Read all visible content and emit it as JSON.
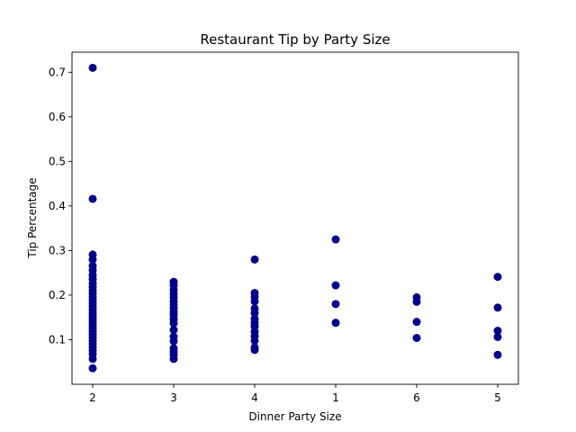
{
  "chart_data": {
    "type": "scatter",
    "title": "Restaurant Tip by Party Size",
    "xlabel": "Dinner Party Size",
    "ylabel": "Tip Percentage",
    "categories": [
      "2",
      "3",
      "4",
      "1",
      "6",
      "5"
    ],
    "y_ticks": [
      0.1,
      0.2,
      0.3,
      0.4,
      0.5,
      0.6,
      0.7
    ],
    "y_tick_labels": [
      "0.1",
      "0.2",
      "0.3",
      "0.4",
      "0.5",
      "0.6",
      "0.7"
    ],
    "ylim": [
      0.0,
      0.745
    ],
    "grid": false,
    "legend": "none",
    "marker_color": "#00008b",
    "points": [
      {
        "x": "2",
        "y": 0.71
      },
      {
        "x": "2",
        "y": 0.416
      },
      {
        "x": "2",
        "y": 0.291
      },
      {
        "x": "2",
        "y": 0.28
      },
      {
        "x": "2",
        "y": 0.266
      },
      {
        "x": "2",
        "y": 0.256
      },
      {
        "x": "2",
        "y": 0.245
      },
      {
        "x": "2",
        "y": 0.236
      },
      {
        "x": "2",
        "y": 0.226
      },
      {
        "x": "2",
        "y": 0.218
      },
      {
        "x": "2",
        "y": 0.21
      },
      {
        "x": "2",
        "y": 0.203
      },
      {
        "x": "2",
        "y": 0.196
      },
      {
        "x": "2",
        "y": 0.189
      },
      {
        "x": "2",
        "y": 0.182
      },
      {
        "x": "2",
        "y": 0.175
      },
      {
        "x": "2",
        "y": 0.168
      },
      {
        "x": "2",
        "y": 0.161
      },
      {
        "x": "2",
        "y": 0.154
      },
      {
        "x": "2",
        "y": 0.147
      },
      {
        "x": "2",
        "y": 0.14
      },
      {
        "x": "2",
        "y": 0.133
      },
      {
        "x": "2",
        "y": 0.126
      },
      {
        "x": "2",
        "y": 0.119
      },
      {
        "x": "2",
        "y": 0.112
      },
      {
        "x": "2",
        "y": 0.105
      },
      {
        "x": "2",
        "y": 0.098
      },
      {
        "x": "2",
        "y": 0.091
      },
      {
        "x": "2",
        "y": 0.084
      },
      {
        "x": "2",
        "y": 0.076
      },
      {
        "x": "2",
        "y": 0.068
      },
      {
        "x": "2",
        "y": 0.057
      },
      {
        "x": "2",
        "y": 0.036
      },
      {
        "x": "3",
        "y": 0.23
      },
      {
        "x": "3",
        "y": 0.222
      },
      {
        "x": "3",
        "y": 0.212
      },
      {
        "x": "3",
        "y": 0.203
      },
      {
        "x": "3",
        "y": 0.195
      },
      {
        "x": "3",
        "y": 0.186
      },
      {
        "x": "3",
        "y": 0.178
      },
      {
        "x": "3",
        "y": 0.17
      },
      {
        "x": "3",
        "y": 0.162
      },
      {
        "x": "3",
        "y": 0.155
      },
      {
        "x": "3",
        "y": 0.146
      },
      {
        "x": "3",
        "y": 0.137
      },
      {
        "x": "3",
        "y": 0.122
      },
      {
        "x": "3",
        "y": 0.107
      },
      {
        "x": "3",
        "y": 0.097
      },
      {
        "x": "3",
        "y": 0.081
      },
      {
        "x": "3",
        "y": 0.073
      },
      {
        "x": "3",
        "y": 0.066
      },
      {
        "x": "3",
        "y": 0.057
      },
      {
        "x": "4",
        "y": 0.28
      },
      {
        "x": "4",
        "y": 0.205
      },
      {
        "x": "4",
        "y": 0.196
      },
      {
        "x": "4",
        "y": 0.186
      },
      {
        "x": "4",
        "y": 0.17
      },
      {
        "x": "4",
        "y": 0.16
      },
      {
        "x": "4",
        "y": 0.147
      },
      {
        "x": "4",
        "y": 0.138
      },
      {
        "x": "4",
        "y": 0.13
      },
      {
        "x": "4",
        "y": 0.118
      },
      {
        "x": "4",
        "y": 0.108
      },
      {
        "x": "4",
        "y": 0.098
      },
      {
        "x": "4",
        "y": 0.083
      },
      {
        "x": "4",
        "y": 0.077
      },
      {
        "x": "1",
        "y": 0.325
      },
      {
        "x": "1",
        "y": 0.222
      },
      {
        "x": "1",
        "y": 0.18
      },
      {
        "x": "1",
        "y": 0.138
      },
      {
        "x": "6",
        "y": 0.195
      },
      {
        "x": "6",
        "y": 0.185
      },
      {
        "x": "6",
        "y": 0.14
      },
      {
        "x": "6",
        "y": 0.104
      },
      {
        "x": "5",
        "y": 0.241
      },
      {
        "x": "5",
        "y": 0.172
      },
      {
        "x": "5",
        "y": 0.12
      },
      {
        "x": "5",
        "y": 0.106
      },
      {
        "x": "5",
        "y": 0.066
      }
    ]
  }
}
